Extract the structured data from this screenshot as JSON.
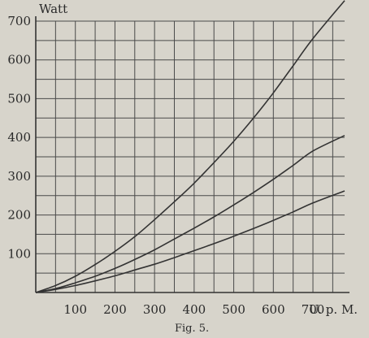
{
  "chart_data": {
    "type": "line",
    "title": "",
    "ylabel": "Watt",
    "xlabel": "U. p. M.",
    "caption": "Fig. 5.",
    "xlim": [
      0,
      780
    ],
    "ylim": [
      0,
      700
    ],
    "x_ticks": [
      100,
      200,
      300,
      400,
      500,
      600,
      700
    ],
    "y_ticks": [
      100,
      200,
      300,
      400,
      500,
      600,
      700
    ],
    "grid": true,
    "series": [
      {
        "x": [
          0,
          50,
          100,
          150,
          200,
          250,
          300,
          350,
          400,
          450,
          500,
          550,
          600,
          650,
          700,
          780
        ],
        "y": [
          0,
          18,
          42,
          72,
          106,
          144,
          188,
          234,
          282,
          335,
          390,
          450,
          515,
          585,
          655,
          753
        ]
      },
      {
        "x": [
          0,
          50,
          100,
          150,
          200,
          250,
          300,
          350,
          400,
          450,
          500,
          550,
          600,
          650,
          700,
          780
        ],
        "y": [
          0,
          10,
          25,
          42,
          62,
          85,
          110,
          138,
          166,
          195,
          226,
          258,
          292,
          328,
          365,
          405
        ]
      },
      {
        "x": [
          0,
          50,
          100,
          150,
          200,
          250,
          300,
          350,
          400,
          450,
          500,
          550,
          600,
          650,
          700,
          780
        ],
        "y": [
          0,
          8,
          18,
          30,
          43,
          58,
          73,
          90,
          108,
          126,
          145,
          165,
          186,
          208,
          231,
          262
        ]
      }
    ]
  }
}
